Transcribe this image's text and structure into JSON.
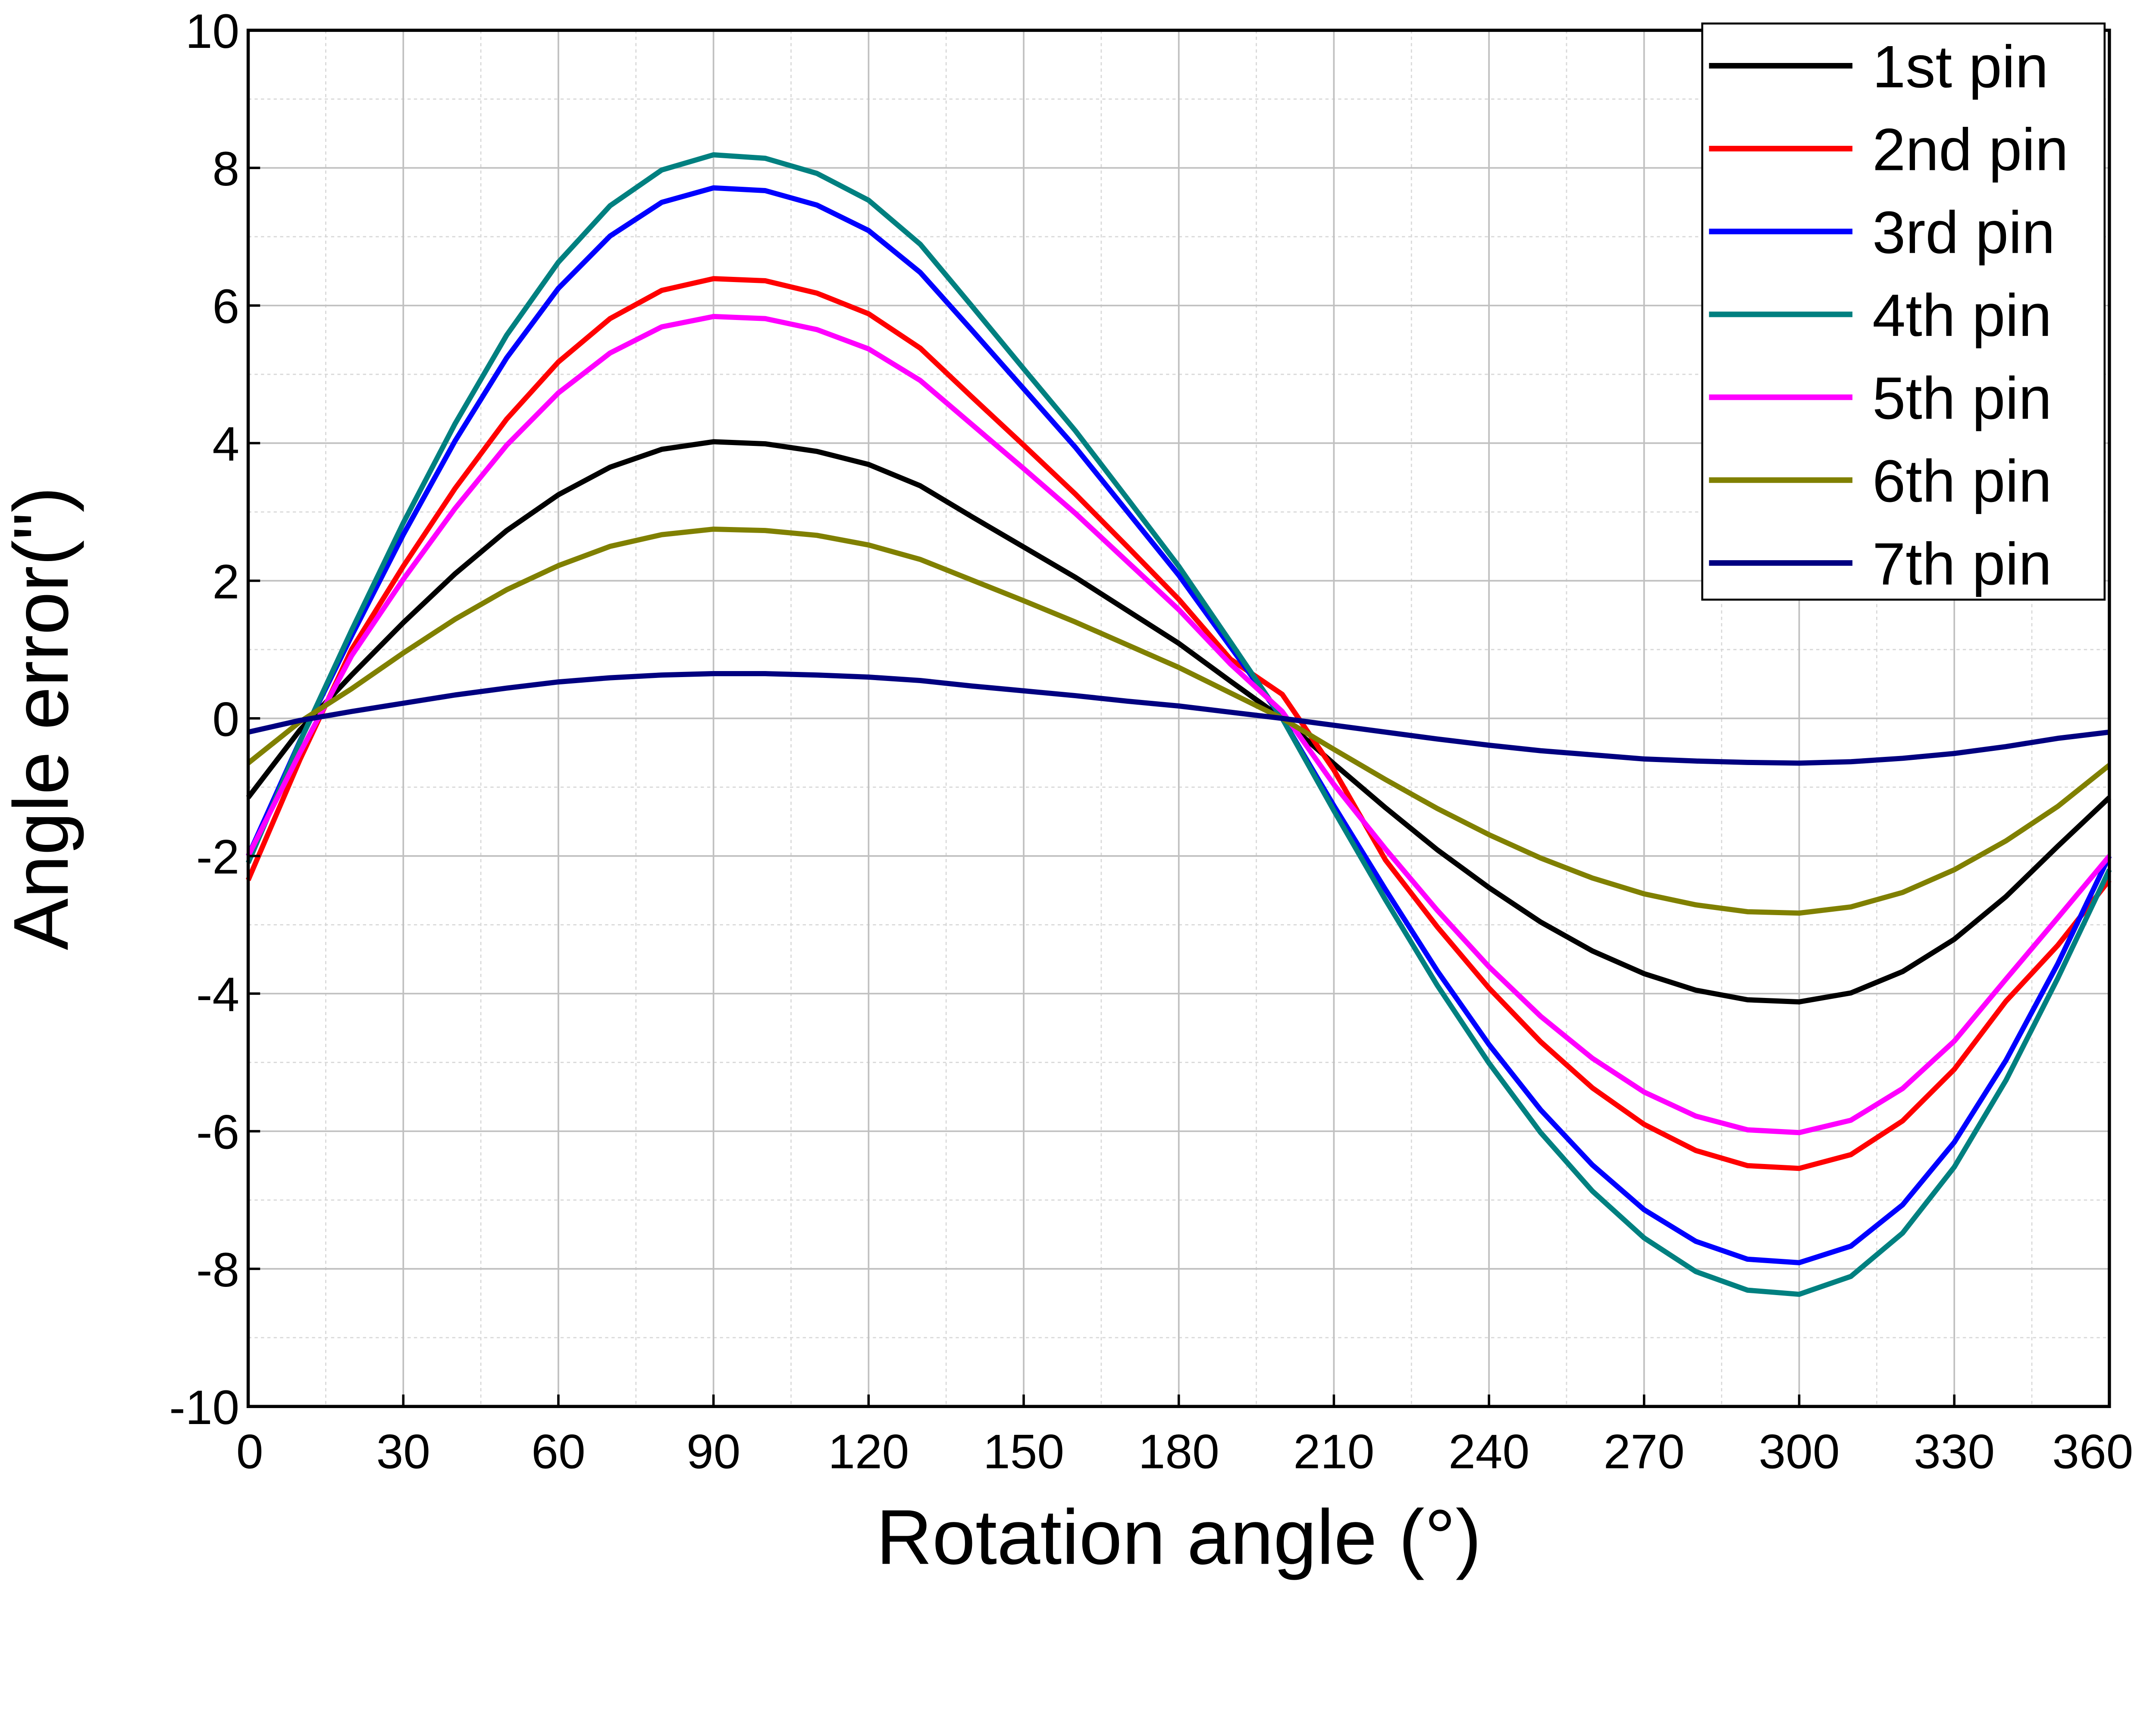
{
  "chart_data": {
    "type": "line",
    "title": "",
    "xlabel": "Rotation angle (°)",
    "ylabel": "Angle error(\")",
    "xlim": [
      0,
      360
    ],
    "ylim": [
      -10,
      10
    ],
    "xticks": [
      0,
      30,
      60,
      90,
      120,
      150,
      180,
      210,
      240,
      270,
      300,
      330,
      360
    ],
    "yticks": [
      -10,
      -8,
      -6,
      -4,
      -2,
      0,
      2,
      4,
      6,
      8,
      10
    ],
    "grid": true,
    "legend_position": "top-right",
    "x": [
      0,
      10,
      20,
      30,
      40,
      50,
      60,
      70,
      80,
      90,
      100,
      110,
      120,
      130,
      140,
      150,
      160,
      170,
      180,
      190,
      200,
      210,
      220,
      230,
      240,
      250,
      260,
      270,
      280,
      290,
      300,
      310,
      320,
      330,
      340,
      350,
      360
    ],
    "series": [
      {
        "name": "1st pin",
        "color": "#000000",
        "values": [
          -1.15,
          -0.17,
          0.63,
          1.39,
          2.1,
          2.73,
          3.25,
          3.65,
          3.91,
          4.02,
          3.99,
          3.88,
          3.69,
          3.38,
          2.93,
          2.49,
          2.05,
          1.57,
          1.09,
          0.54,
          0,
          -0.66,
          -1.3,
          -1.91,
          -2.46,
          -2.96,
          -3.38,
          -3.71,
          -3.95,
          -4.09,
          -4.12,
          -3.99,
          -3.68,
          -3.21,
          -2.59,
          -1.86,
          -1.15
        ]
      },
      {
        "name": "2nd pin",
        "color": "#ff0000",
        "values": [
          -2.35,
          -0.6,
          1.0,
          2.21,
          3.34,
          4.35,
          5.18,
          5.81,
          6.22,
          6.39,
          6.36,
          6.18,
          5.88,
          5.38,
          4.67,
          3.97,
          3.26,
          2.5,
          1.73,
          0.86,
          0.35,
          -0.75,
          -2.06,
          -3.03,
          -3.92,
          -4.7,
          -5.37,
          -5.9,
          -6.28,
          -6.5,
          -6.54,
          -6.34,
          -5.85,
          -5.1,
          -4.11,
          -3.3,
          -2.35
        ]
      },
      {
        "name": "3rd pin",
        "color": "#0000ff",
        "values": [
          -2.0,
          -0.33,
          1.2,
          2.67,
          4.03,
          5.24,
          6.25,
          7.01,
          7.5,
          7.71,
          7.67,
          7.46,
          7.09,
          6.48,
          5.64,
          4.79,
          3.94,
          3.01,
          2.08,
          1.04,
          0,
          -1.27,
          -2.49,
          -3.67,
          -4.74,
          -5.69,
          -6.49,
          -7.14,
          -7.6,
          -7.86,
          -7.91,
          -7.67,
          -7.07,
          -6.16,
          -4.97,
          -3.57,
          -2.0
        ]
      },
      {
        "name": "4th pin",
        "color": "#008080",
        "values": [
          -2.1,
          -0.34,
          1.28,
          2.84,
          4.28,
          5.57,
          6.63,
          7.45,
          7.97,
          8.19,
          8.14,
          7.92,
          7.53,
          6.89,
          5.99,
          5.08,
          4.18,
          3.2,
          2.21,
          1.11,
          0,
          -1.34,
          -2.64,
          -3.88,
          -5.01,
          -6.02,
          -6.87,
          -7.55,
          -8.04,
          -8.31,
          -8.37,
          -8.11,
          -7.48,
          -6.52,
          -5.26,
          -3.78,
          -2.2
        ]
      },
      {
        "name": "5th pin",
        "color": "#ff00ff",
        "values": [
          -2.0,
          -0.5,
          0.91,
          2.02,
          3.05,
          3.97,
          4.73,
          5.31,
          5.69,
          5.84,
          5.81,
          5.65,
          5.37,
          4.91,
          4.27,
          3.63,
          2.98,
          2.28,
          1.58,
          0.79,
          0.1,
          -0.96,
          -1.9,
          -2.79,
          -3.61,
          -4.33,
          -4.94,
          -5.43,
          -5.78,
          -5.98,
          -6.02,
          -5.84,
          -5.38,
          -4.69,
          -3.79,
          -2.9,
          -2.0
        ]
      },
      {
        "name": "6th pin",
        "color": "#808000",
        "values": [
          -0.65,
          -0.05,
          0.43,
          0.95,
          1.44,
          1.87,
          2.22,
          2.5,
          2.67,
          2.75,
          2.73,
          2.66,
          2.52,
          2.31,
          2.01,
          1.71,
          1.4,
          1.07,
          0.74,
          0.37,
          0,
          -0.45,
          -0.89,
          -1.31,
          -1.69,
          -2.03,
          -2.32,
          -2.55,
          -2.71,
          -2.81,
          -2.83,
          -2.74,
          -2.53,
          -2.2,
          -1.78,
          -1.28,
          -0.68
        ]
      },
      {
        "name": "7th pin",
        "color": "#000080",
        "values": [
          -0.2,
          -0.03,
          0.1,
          0.22,
          0.34,
          0.44,
          0.53,
          0.59,
          0.63,
          0.65,
          0.65,
          0.63,
          0.6,
          0.55,
          0.47,
          0.4,
          0.33,
          0.25,
          0.18,
          0.09,
          0,
          -0.1,
          -0.2,
          -0.3,
          -0.39,
          -0.47,
          -0.53,
          -0.59,
          -0.62,
          -0.64,
          -0.65,
          -0.63,
          -0.58,
          -0.51,
          -0.41,
          -0.29,
          -0.2
        ]
      }
    ]
  }
}
